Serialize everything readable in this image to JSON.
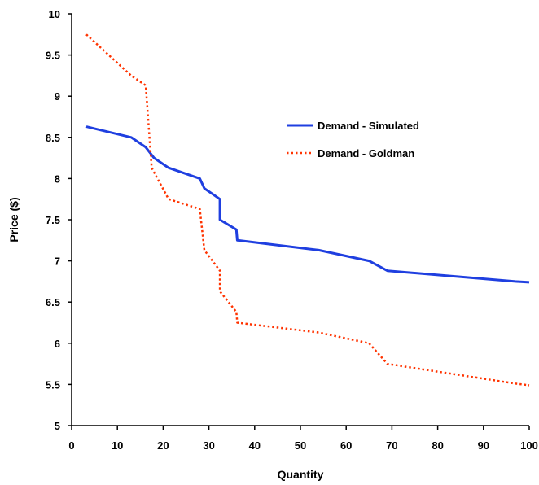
{
  "chart_data": {
    "type": "line",
    "xlabel": "Quantity",
    "ylabel": "Price ($)",
    "xlim": [
      0,
      100
    ],
    "ylim": [
      5,
      10
    ],
    "xticks": [
      "0",
      "10",
      "20",
      "30",
      "40",
      "50",
      "60",
      "70",
      "80",
      "90",
      "100"
    ],
    "yticks": [
      "5",
      "5.5",
      "6",
      "6.5",
      "7",
      "7.5",
      "8",
      "8.5",
      "9",
      "9.5",
      "10"
    ],
    "grid": false,
    "legend_position": "upper-right inside plot",
    "series": [
      {
        "name": "Demand - Simulated",
        "color": "#1f3fe0",
        "style": "solid",
        "x": [
          3.2,
          13,
          16.2,
          18,
          21.2,
          28,
          29,
          32.4,
          32.4,
          36,
          36.2,
          54,
          65,
          69,
          97,
          100
        ],
        "y": [
          8.63,
          8.5,
          8.38,
          8.25,
          8.13,
          8.0,
          7.88,
          7.75,
          7.5,
          7.38,
          7.25,
          7.13,
          7.0,
          6.88,
          6.75,
          6.74
        ]
      },
      {
        "name": "Demand - Goldman",
        "color": "#ff3300",
        "style": "dotted",
        "x": [
          3.2,
          13,
          16.2,
          17.5,
          21.2,
          28,
          29,
          32.4,
          32.4,
          36,
          36.2,
          54,
          65,
          69,
          97,
          100
        ],
        "y": [
          9.75,
          9.25,
          9.13,
          8.13,
          7.75,
          7.63,
          7.13,
          6.88,
          6.63,
          6.38,
          6.25,
          6.13,
          6.0,
          5.75,
          5.51,
          5.49
        ]
      }
    ]
  }
}
